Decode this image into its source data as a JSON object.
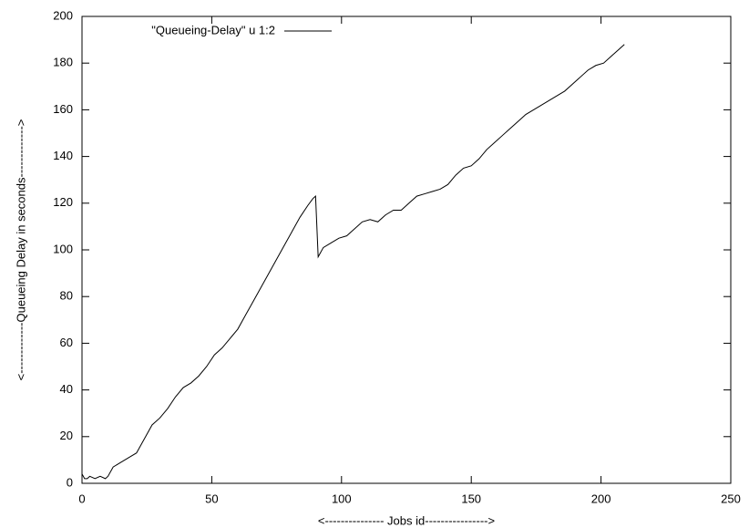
{
  "chart_data": {
    "type": "line",
    "x_label": "<--------------- Jobs id---------------->",
    "y_label": "<-------------Queueing Delay in seconds------------->",
    "x": [
      0,
      1,
      2,
      3,
      5,
      7,
      9,
      10,
      12,
      15,
      18,
      21,
      24,
      27,
      30,
      33,
      36,
      39,
      42,
      45,
      48,
      51,
      54,
      57,
      60,
      63,
      66,
      69,
      72,
      75,
      78,
      81,
      84,
      87,
      89,
      90,
      91,
      93,
      96,
      99,
      102,
      105,
      108,
      111,
      114,
      117,
      120,
      123,
      126,
      129,
      132,
      135,
      138,
      141,
      144,
      147,
      150,
      153,
      156,
      159,
      162,
      165,
      168,
      171,
      174,
      177,
      180,
      183,
      186,
      189,
      192,
      195,
      198,
      201,
      204,
      207,
      209
    ],
    "series": [
      {
        "name": "\"Queueing-Delay\" u 1:2",
        "color": "#000000",
        "values": [
          4,
          2,
          2,
          3,
          2,
          3,
          2,
          3,
          7,
          9,
          11,
          13,
          19,
          25,
          28,
          32,
          37,
          41,
          43,
          46,
          50,
          55,
          58,
          62,
          66,
          72,
          78,
          84,
          90,
          96,
          102,
          108,
          114,
          119,
          122,
          123,
          97,
          101,
          103,
          105,
          106,
          109,
          112,
          113,
          112,
          115,
          117,
          117,
          120,
          123,
          124,
          125,
          126,
          128,
          132,
          135,
          136,
          139,
          143,
          146,
          149,
          152,
          155,
          158,
          160,
          162,
          164,
          166,
          168,
          171,
          174,
          177,
          179,
          180,
          183,
          186,
          188
        ]
      }
    ],
    "xlim": [
      0,
      250
    ],
    "xticks": [
      0,
      50,
      100,
      150,
      200,
      250
    ],
    "ylim": [
      0,
      200
    ],
    "yticks": [
      0,
      20,
      40,
      60,
      80,
      100,
      120,
      140,
      160,
      180,
      200
    ],
    "legend": "top-left",
    "grid": false
  }
}
